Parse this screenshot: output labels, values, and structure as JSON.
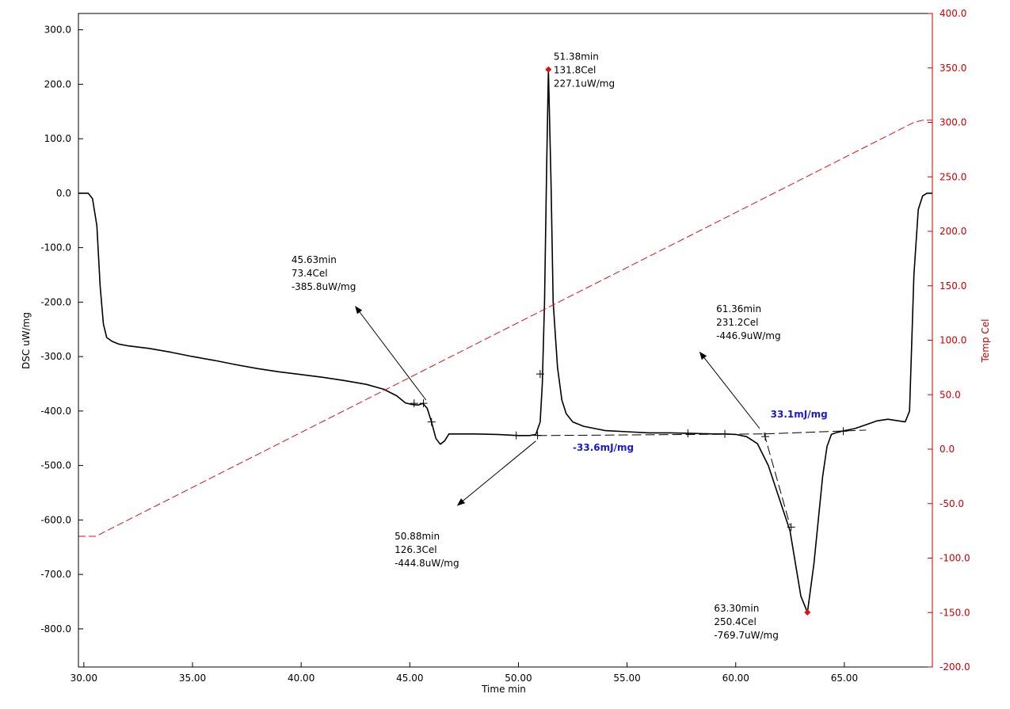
{
  "chart_data": {
    "type": "line",
    "xlabel": "Time min",
    "ylabel": "DSC uW/mg",
    "y2label": "Temp Cel",
    "xlim": [
      29.75,
      69.05
    ],
    "ylim": [
      -870,
      330
    ],
    "y2lim": [
      -200,
      400
    ],
    "x_ticks": [
      30,
      35,
      40,
      45,
      50,
      55,
      60,
      65
    ],
    "x_tick_labels": [
      "30.00",
      "35.00",
      "40.00",
      "45.00",
      "50.00",
      "55.00",
      "60.00",
      "65.00"
    ],
    "y_ticks": [
      300,
      200,
      100,
      0,
      -100,
      -200,
      -300,
      -400,
      -500,
      -600,
      -700,
      -800
    ],
    "y_tick_labels": [
      "300.0",
      "200.0",
      "100.0",
      "0.0",
      "-100.0",
      "-200.0",
      "-300.0",
      "-400.0",
      "-500.0",
      "-600.0",
      "-700.0",
      "-800.0"
    ],
    "y2_ticks": [
      400,
      350,
      300,
      250,
      200,
      150,
      100,
      50,
      0,
      -50,
      -100,
      -150,
      -200
    ],
    "y2_tick_labels": [
      "400.0",
      "350.0",
      "300.0",
      "250.0",
      "200.0",
      "150.0",
      "100.0",
      "50.0",
      "0.0",
      "-50.0",
      "-100.0",
      "-150.0",
      "-200.0"
    ],
    "grid": false,
    "legend": "none",
    "colors": {
      "dsc": "#000000",
      "temp": "#dd1111",
      "axis_right": "#cc0000",
      "peak_marker": "#e01010",
      "enthalpy": "#1a1ad6"
    },
    "series": [
      {
        "axis": "left",
        "style": "solid",
        "x": [
          29.75,
          30.2,
          30.4,
          30.6,
          30.75,
          30.9,
          31.05,
          31.3,
          31.6,
          32.0,
          33.0,
          34.0,
          35.0,
          36.0,
          37.0,
          38.0,
          39.0,
          40.0,
          41.0,
          42.0,
          43.0,
          43.8,
          44.4,
          44.8,
          45.1,
          45.4,
          45.6,
          45.8,
          46.0,
          46.2,
          46.4,
          46.6,
          46.8,
          47.2,
          48.0,
          49.0,
          50.0,
          50.5,
          50.8,
          51.0,
          51.1,
          51.2,
          51.3,
          51.38,
          51.5,
          51.6,
          51.8,
          52.0,
          52.2,
          52.5,
          53.0,
          53.5,
          54.0,
          55.0,
          56.0,
          57.0,
          58.0,
          59.0,
          59.5,
          60.0,
          60.5,
          61.0,
          61.5,
          62.0,
          62.5,
          63.0,
          63.3,
          63.6,
          63.8,
          64.0,
          64.2,
          64.4,
          64.6,
          64.8,
          65.0,
          65.5,
          66.0,
          66.5,
          67.0,
          67.5,
          67.8,
          68.0,
          68.2,
          68.4,
          68.6,
          68.8,
          69.05
        ],
        "y": [
          0,
          0,
          -10,
          -60,
          -170,
          -240,
          -265,
          -272,
          -277,
          -280,
          -285,
          -292,
          -300,
          -307,
          -315,
          -322,
          -328,
          -333,
          -338,
          -344,
          -351,
          -360,
          -372,
          -385,
          -388,
          -389,
          -386,
          -395,
          -420,
          -450,
          -461,
          -455,
          -442,
          -442,
          -442,
          -443,
          -445,
          -445,
          -443,
          -420,
          -350,
          -200,
          50,
          227,
          20,
          -200,
          -320,
          -380,
          -405,
          -420,
          -428,
          -432,
          -436,
          -438,
          -440,
          -440,
          -441,
          -442,
          -442,
          -443,
          -447,
          -460,
          -500,
          -560,
          -620,
          -740,
          -769.7,
          -680,
          -600,
          -520,
          -465,
          -443,
          -440,
          -438,
          -436,
          -432,
          -425,
          -418,
          -415,
          -418,
          -420,
          -400,
          -150,
          -30,
          -5,
          0,
          0
        ]
      },
      {
        "axis": "right",
        "style": "dashed",
        "x": [
          29.75,
          30.55,
          68.2,
          68.6,
          69.05
        ],
        "y": [
          -80,
          -80,
          300,
          302,
          302
        ]
      }
    ],
    "baselines": [
      {
        "x": [
          50.88,
          61.36
        ],
        "y": [
          -445,
          -442
        ]
      },
      {
        "x": [
          61.36,
          66.0
        ],
        "y": [
          -442,
          -435
        ]
      },
      {
        "x": [
          61.3,
          62.5
        ],
        "y": [
          -440,
          -610
        ]
      }
    ],
    "tick_marks": [
      {
        "x": 45.2,
        "y": -385.8
      },
      {
        "x": 45.63,
        "y": -385.8
      },
      {
        "x": 46.0,
        "y": -420
      },
      {
        "x": 49.9,
        "y": -444.8
      },
      {
        "x": 50.88,
        "y": -444.8
      },
      {
        "x": 51.0,
        "y": -332
      },
      {
        "x": 57.8,
        "y": -441
      },
      {
        "x": 59.5,
        "y": -442
      },
      {
        "x": 61.36,
        "y": -446.9
      },
      {
        "x": 62.55,
        "y": -613
      },
      {
        "x": 64.95,
        "y": -437
      }
    ],
    "peaks": [
      {
        "x": 51.38,
        "y": 227.1
      },
      {
        "x": 63.3,
        "y": -769.7
      }
    ],
    "annotations": [
      {
        "time": "51.38min",
        "temp": "131.8Cel",
        "value": "227.1uW/mg",
        "tx": 51.62,
        "ty": 245
      },
      {
        "time": "45.63min",
        "temp": "73.4Cel",
        "value": "-385.8uW/mg",
        "tx": 39.55,
        "ty": -128
      },
      {
        "time": "61.36min",
        "temp": "231.2Cel",
        "value": "-446.9uW/mg",
        "tx": 59.1,
        "ty": -218
      },
      {
        "time": "50.88min",
        "temp": "126.3Cel",
        "value": "-444.8uW/mg",
        "tx": 44.3,
        "ty": -636
      },
      {
        "time": "63.30min",
        "temp": "250.4Cel",
        "value": "-769.7uW/mg",
        "tx": 59.0,
        "ty": -768
      }
    ],
    "arrows": [
      {
        "x1": 45.75,
        "y1": -380,
        "x2": 42.5,
        "y2": -208
      },
      {
        "x1": 61.1,
        "y1": -432,
        "x2": 58.35,
        "y2": -292
      },
      {
        "x1": 50.8,
        "y1": -455,
        "x2": 47.2,
        "y2": -573
      }
    ],
    "enthalpies": [
      {
        "label": "33.1mJ/mg",
        "tx": 61.6,
        "ty": -412
      },
      {
        "label": "-33.6mJ/mg",
        "tx": 52.5,
        "ty": -473
      }
    ]
  }
}
